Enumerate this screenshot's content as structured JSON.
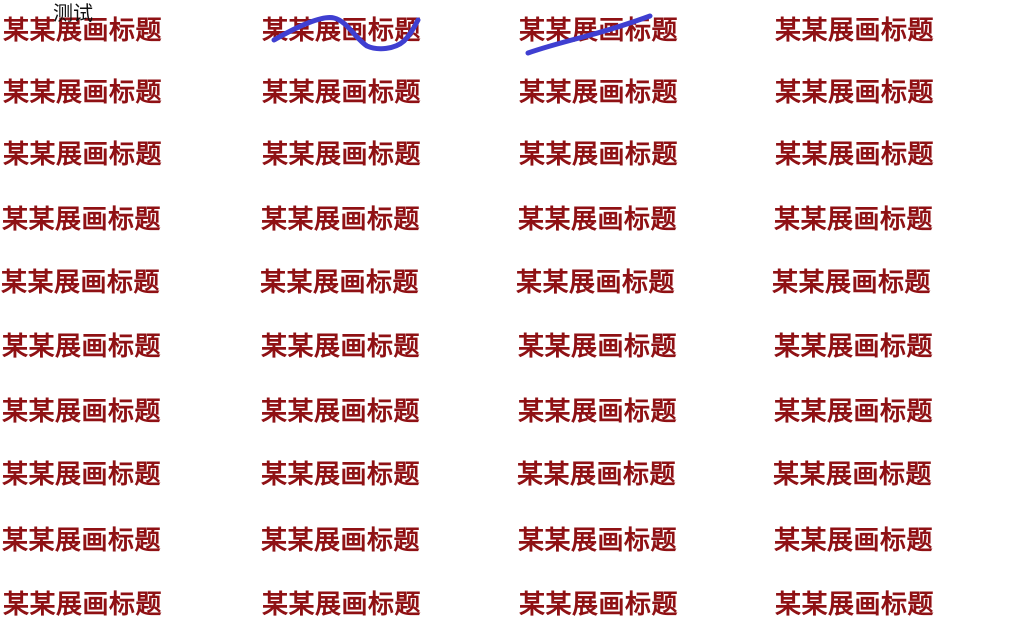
{
  "overlay": {
    "label": "测试",
    "stroke_color": "#3f3fd1"
  },
  "canvas": {
    "repeated_title": "某某展画标题",
    "title_color": "#8f1114",
    "rows": 10,
    "columns": 4
  }
}
